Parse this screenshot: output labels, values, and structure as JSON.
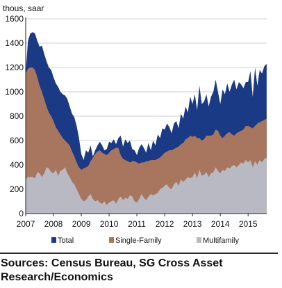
{
  "chart_data": {
    "type": "area",
    "stacked": true,
    "units_label": "thous, saar",
    "x_tick_labels": [
      "2007",
      "2008",
      "2009",
      "2010",
      "2011",
      "2012",
      "2013",
      "2014",
      "2015"
    ],
    "y_tick_labels": [
      "0",
      "200",
      "400",
      "600",
      "800",
      "1000",
      "1200",
      "1400",
      "1600"
    ],
    "ylim": [
      0,
      1600
    ],
    "xlim": [
      2007.0,
      2015.67
    ],
    "grid": true,
    "legend_position": "bottom",
    "colors": {
      "total": "#1b3a85",
      "single_family": "#a8765e",
      "multifamily": "#b9b9c3"
    },
    "x": [
      2007.0,
      2007.083,
      2007.167,
      2007.25,
      2007.333,
      2007.417,
      2007.5,
      2007.583,
      2007.667,
      2007.75,
      2007.833,
      2007.917,
      2008.0,
      2008.083,
      2008.167,
      2008.25,
      2008.333,
      2008.417,
      2008.5,
      2008.583,
      2008.667,
      2008.75,
      2008.833,
      2008.917,
      2009.0,
      2009.083,
      2009.167,
      2009.25,
      2009.333,
      2009.417,
      2009.5,
      2009.583,
      2009.667,
      2009.75,
      2009.833,
      2009.917,
      2010.0,
      2010.083,
      2010.167,
      2010.25,
      2010.333,
      2010.417,
      2010.5,
      2010.583,
      2010.667,
      2010.75,
      2010.833,
      2010.917,
      2011.0,
      2011.083,
      2011.167,
      2011.25,
      2011.333,
      2011.417,
      2011.5,
      2011.583,
      2011.667,
      2011.75,
      2011.833,
      2011.917,
      2012.0,
      2012.083,
      2012.167,
      2012.25,
      2012.333,
      2012.417,
      2012.5,
      2012.583,
      2012.667,
      2012.75,
      2012.833,
      2012.917,
      2013.0,
      2013.083,
      2013.167,
      2013.25,
      2013.333,
      2013.417,
      2013.5,
      2013.583,
      2013.667,
      2013.75,
      2013.833,
      2013.917,
      2014.0,
      2014.083,
      2014.167,
      2014.25,
      2014.333,
      2014.417,
      2014.5,
      2014.583,
      2014.667,
      2014.75,
      2014.833,
      2014.917,
      2015.0,
      2015.083,
      2015.167,
      2015.25,
      2015.333,
      2015.417,
      2015.5,
      2015.583,
      2015.667
    ],
    "series": [
      {
        "name": "Total",
        "key": "total",
        "values": [
          1160,
          1420,
          1480,
          1490,
          1480,
          1420,
          1370,
          1380,
          1310,
          1250,
          1200,
          1180,
          1120,
          1070,
          1040,
          1000,
          980,
          970,
          940,
          880,
          820,
          790,
          720,
          620,
          490,
          440,
          520,
          500,
          560,
          470,
          520,
          560,
          590,
          560,
          520,
          530,
          590,
          580,
          610,
          570,
          620,
          640,
          550,
          610,
          580,
          600,
          530,
          520,
          480,
          540,
          570,
          540,
          500,
          580,
          520,
          600,
          560,
          650,
          620,
          700,
          690,
          740,
          710,
          660,
          740,
          760,
          700,
          820,
          780,
          880,
          830,
          960,
          900,
          980,
          850,
          1050,
          900,
          920,
          980,
          880,
          960,
          1000,
          1100,
          1000,
          900,
          1020,
          980,
          1070,
          1000,
          1060,
          1100,
          1020,
          1080,
          1060,
          1030,
          1080,
          1080,
          1170,
          960,
          1200,
          1050,
          1180,
          1150,
          1210,
          1230
        ]
      },
      {
        "name": "Single-Family",
        "key": "single_family",
        "values": [
          1150,
          1190,
          1200,
          1200,
          1180,
          1120,
          1050,
          1000,
          940,
          880,
          830,
          800,
          760,
          710,
          680,
          650,
          620,
          600,
          580,
          560,
          510,
          470,
          420,
          380,
          360,
          370,
          380,
          390,
          430,
          460,
          490,
          510,
          520,
          500,
          490,
          480,
          500,
          520,
          530,
          540,
          540,
          480,
          450,
          440,
          430,
          420,
          430,
          430,
          420,
          410,
          420,
          420,
          430,
          430,
          440,
          440,
          440,
          450,
          460,
          480,
          500,
          510,
          520,
          520,
          530,
          540,
          550,
          570,
          580,
          610,
          620,
          640,
          630,
          640,
          620,
          620,
          600,
          610,
          640,
          640,
          640,
          650,
          690,
          680,
          640,
          620,
          640,
          660,
          670,
          650,
          640,
          660,
          670,
          680,
          690,
          720,
          720,
          710,
          700,
          720,
          740,
          750,
          760,
          770,
          780
        ]
      },
      {
        "name": "Multifamily",
        "key": "multifamily",
        "values": [
          280,
          300,
          300,
          300,
          290,
          340,
          330,
          300,
          330,
          380,
          370,
          340,
          330,
          360,
          310,
          350,
          360,
          380,
          330,
          300,
          260,
          240,
          200,
          160,
          120,
          100,
          110,
          140,
          160,
          120,
          100,
          110,
          90,
          80,
          100,
          70,
          90,
          100,
          110,
          80,
          120,
          140,
          110,
          130,
          120,
          150,
          140,
          100,
          90,
          120,
          160,
          130,
          110,
          140,
          160,
          150,
          160,
          170,
          200,
          210,
          230,
          240,
          210,
          200,
          240,
          260,
          230,
          280,
          260,
          280,
          300,
          290,
          300,
          340,
          290,
          360,
          310,
          320,
          340,
          300,
          330,
          340,
          380,
          350,
          330,
          360,
          350,
          380,
          370,
          390,
          400,
          380,
          400,
          420,
          410,
          440,
          420,
          440,
          380,
          430,
          400,
          440,
          420,
          450,
          460
        ]
      }
    ]
  },
  "legend": [
    {
      "label": "Total",
      "color": "#1b3a85"
    },
    {
      "label": "Single-Family",
      "color": "#a8765e"
    },
    {
      "label": "Multifamily",
      "color": "#b9b9c3"
    }
  ],
  "source_text": "Sources: Census Bureau, SG Cross Asset Research/Economics"
}
